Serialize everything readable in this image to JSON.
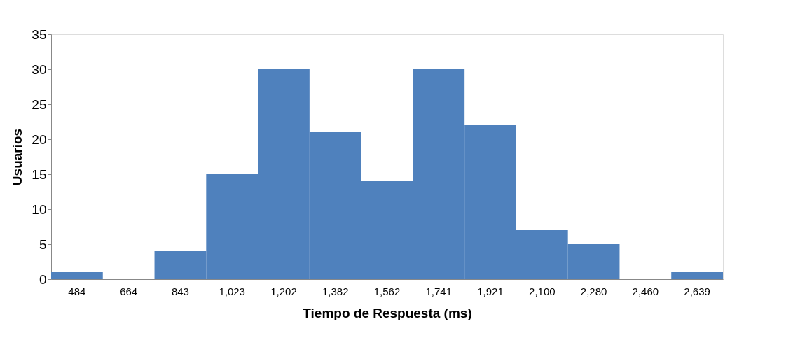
{
  "chart_data": {
    "type": "bar",
    "xlabel": "Tiempo de Respuesta (ms)",
    "ylabel": "Usuarios",
    "categories": [
      "484",
      "664",
      "843",
      "1,023",
      "1,202",
      "1,382",
      "1,562",
      "1,741",
      "1,921",
      "2,100",
      "2,280",
      "2,460",
      "2,639"
    ],
    "values": [
      1,
      0,
      4,
      15,
      30,
      21,
      14,
      30,
      22,
      7,
      5,
      0,
      1
    ],
    "color": "#4f81bd",
    "ylim": [
      0,
      35
    ],
    "yticks": [
      0,
      5,
      10,
      15,
      20,
      25,
      30,
      35
    ],
    "grid": false
  }
}
